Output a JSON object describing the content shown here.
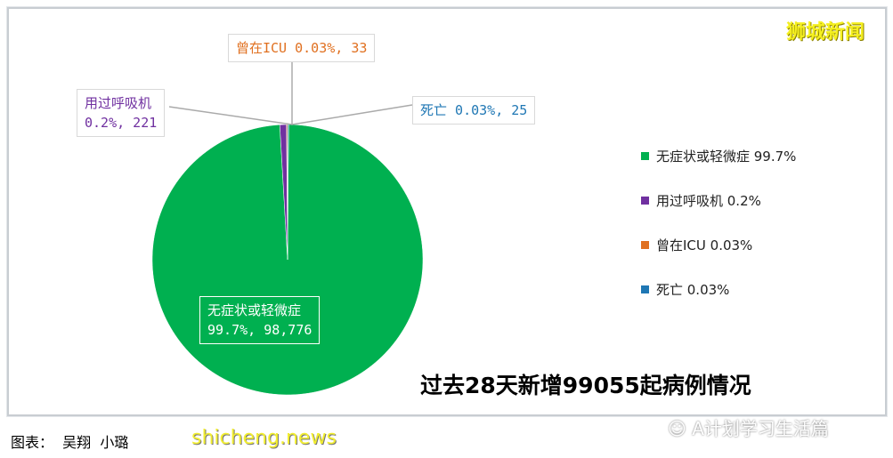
{
  "chart_data": {
    "type": "pie",
    "title": "过去28天新增99055起病例情况",
    "slices": [
      {
        "name": "无症状或轻微症",
        "percent": 99.7,
        "count": 98776,
        "label": "99.7%, 98,776",
        "legend": "无症状或轻微症 99.7%",
        "color": "#00b050"
      },
      {
        "name": "用过呼吸机",
        "percent": 0.2,
        "count": 221,
        "label": "0.2%, 221",
        "legend": "用过呼吸机 0.2%",
        "color": "#7030a0"
      },
      {
        "name": "曾在ICU",
        "percent": 0.03,
        "count": 33,
        "label": "0.03%, 33",
        "legend": "曾在ICU 0.03%",
        "color": "#e07020"
      },
      {
        "name": "死亡",
        "percent": 0.03,
        "count": 25,
        "label": "0.03%, 25",
        "legend": "死亡 0.03%",
        "color": "#1f77b4"
      }
    ],
    "legend_position": "right"
  },
  "brand": "狮城新闻",
  "caption": "图表：  吴翔  小璐",
  "watermark_site": "shicheng.news",
  "watermark_account": "A计划学习生活篇"
}
